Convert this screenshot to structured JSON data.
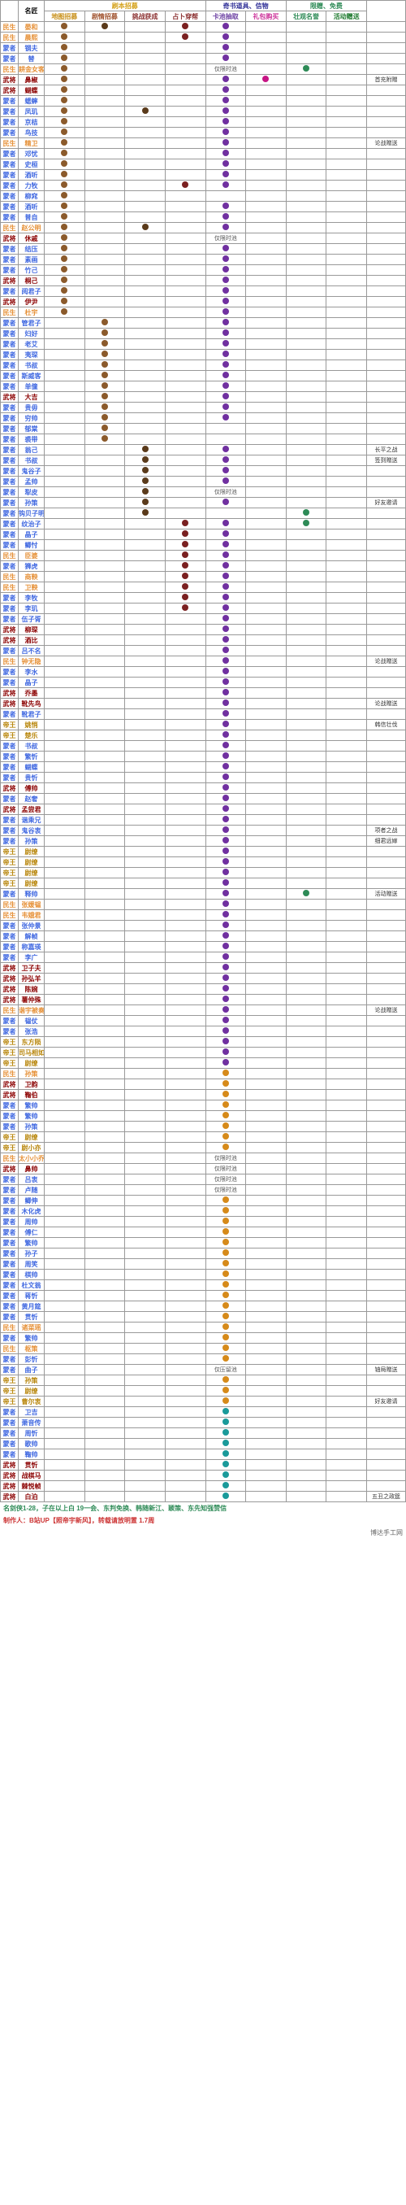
{
  "headers": {
    "name": "名匠",
    "group1": "刷本招募",
    "group2": "奇书道具、信物",
    "group3": "限赠、免费",
    "cols": [
      "地图招募",
      "剧情招募",
      "挑战获成",
      "占卜穿帮",
      "卡池抽取",
      "礼包购买",
      "壮观名誉",
      "活动赠送"
    ]
  },
  "colors": {
    "header1": "#d4a017",
    "header2": "#8b4513",
    "header3": "#333399",
    "header_cols": [
      "#c8901a",
      "#a0522d",
      "#8b3030",
      "#8b3030",
      "#6a3ea1",
      "#cc3399",
      "#2e8b57",
      "#1e7a2e"
    ],
    "cat": {
      "民生": "#e69138",
      "武将": "#8b0000",
      "蒙者": "#4169e1",
      "蒙师": "#1e7a2e",
      "帝王": "#b8860b"
    },
    "name_default": "#cc7a00",
    "dot": {
      "brown": "#8b5a2b",
      "darkbrown": "#5a3a1a",
      "maroon": "#7a2020",
      "purple": "#7030a0",
      "magenta": "#c71585",
      "green": "#2e8b57",
      "teal": "#1a9a9a",
      "orange": "#d68a1a"
    }
  },
  "rows": [
    {
      "cat": "民生",
      "catc": "民生",
      "name": "晏和",
      "dots": {
        "0": "brown",
        "1": "darkbrown",
        "3": "maroon",
        "4": "purple"
      }
    },
    {
      "cat": "民生",
      "catc": "民生",
      "name": "晨熙",
      "dots": {
        "0": "brown",
        "3": "maroon",
        "4": "purple"
      }
    },
    {
      "cat": "蒙者",
      "catc": "蒙者",
      "name": "钢夫",
      "dots": {
        "0": "brown",
        "4": "purple"
      }
    },
    {
      "cat": "蒙者",
      "catc": "蒙者",
      "name": "替",
      "dots": {
        "0": "brown",
        "4": "purple"
      }
    },
    {
      "cat": "民生",
      "catc": "民生",
      "name": "耕金女客",
      "dots": {
        "0": "brown",
        "4t": "仅限时池",
        "6": "green"
      }
    },
    {
      "cat": "武将",
      "catc": "武将",
      "name": "鼻椒",
      "dots": {
        "0": "brown",
        "4": "purple",
        "5": "magenta"
      },
      "note": "首充附赠"
    },
    {
      "cat": "武将",
      "catc": "武将",
      "name": "蝴蝶",
      "dots": {
        "0": "brown",
        "4": "purple"
      }
    },
    {
      "cat": "蒙者",
      "catc": "蒙者",
      "name": "蟋蟀",
      "dots": {
        "0": "brown",
        "4": "purple"
      }
    },
    {
      "cat": "蒙者",
      "catc": "蒙者",
      "name": "凤玑",
      "dots": {
        "0": "brown",
        "2": "darkbrown",
        "4": "purple"
      }
    },
    {
      "cat": "蒙者",
      "catc": "蒙者",
      "name": "京桔",
      "dots": {
        "0": "brown",
        "4": "purple"
      }
    },
    {
      "cat": "蒙者",
      "catc": "蒙者",
      "name": "鸟技",
      "dots": {
        "0": "brown",
        "4": "purple"
      }
    },
    {
      "cat": "民生",
      "catc": "民生",
      "name": "精卫",
      "dots": {
        "0": "brown",
        "4": "purple"
      },
      "note": "论战赠送"
    },
    {
      "cat": "蒙者",
      "catc": "蒙者",
      "name": "邓忧",
      "dots": {
        "0": "brown",
        "4": "purple"
      }
    },
    {
      "cat": "蒙者",
      "catc": "蒙者",
      "name": "史桓",
      "dots": {
        "0": "brown",
        "4": "purple"
      }
    },
    {
      "cat": "蒙者",
      "catc": "蒙者",
      "name": "酒听",
      "dots": {
        "0": "brown",
        "4": "purple"
      }
    },
    {
      "cat": "蒙者",
      "catc": "蒙者",
      "name": "力牧",
      "dots": {
        "0": "brown",
        "3": "maroon",
        "4": "purple"
      }
    },
    {
      "cat": "蒙者",
      "catc": "蒙者",
      "name": "柳窕",
      "dots": {
        "0": "brown"
      }
    },
    {
      "cat": "蒙者",
      "catc": "蒙者",
      "name": "酒听",
      "dots": {
        "0": "brown",
        "4": "purple"
      }
    },
    {
      "cat": "蒙者",
      "catc": "蒙者",
      "name": "普自",
      "dots": {
        "0": "brown",
        "4": "purple"
      }
    },
    {
      "cat": "民生",
      "catc": "民生",
      "name": "赵公明",
      "dots": {
        "0": "brown",
        "2": "darkbrown",
        "4": "purple"
      }
    },
    {
      "cat": "武将",
      "catc": "武将",
      "name": "休戚",
      "dots": {
        "0": "brown",
        "4t": "仅限时池"
      }
    },
    {
      "cat": "蒙者",
      "catc": "蒙者",
      "name": "结压",
      "dots": {
        "0": "brown",
        "4": "purple"
      }
    },
    {
      "cat": "蒙者",
      "catc": "蒙者",
      "name": "素画",
      "dots": {
        "0": "brown",
        "4": "purple"
      }
    },
    {
      "cat": "蒙者",
      "catc": "蒙者",
      "name": "竹己",
      "dots": {
        "0": "brown",
        "4": "purple"
      }
    },
    {
      "cat": "武将",
      "catc": "武将",
      "name": "桐己",
      "dots": {
        "0": "brown",
        "4": "purple"
      }
    },
    {
      "cat": "蒙者",
      "catc": "蒙者",
      "name": "阅君子",
      "dots": {
        "0": "brown",
        "4": "purple"
      }
    },
    {
      "cat": "武将",
      "catc": "武将",
      "name": "伊尹",
      "dots": {
        "0": "brown",
        "4": "purple"
      }
    },
    {
      "cat": "民生",
      "catc": "民生",
      "name": "杜宇",
      "dots": {
        "0": "brown",
        "4": "purple"
      }
    },
    {
      "cat": "蒙者",
      "catc": "蒙者",
      "name": "管君子",
      "dots": {
        "1": "brown",
        "4": "purple"
      }
    },
    {
      "cat": "蒙者",
      "catc": "蒙者",
      "name": "妇好",
      "dots": {
        "1": "brown",
        "4": "purple"
      }
    },
    {
      "cat": "蒙者",
      "catc": "蒙者",
      "name": "老艾",
      "dots": {
        "1": "brown",
        "4": "purple"
      }
    },
    {
      "cat": "蒙者",
      "catc": "蒙者",
      "name": "夷琛",
      "dots": {
        "1": "brown",
        "4": "purple"
      }
    },
    {
      "cat": "蒙者",
      "catc": "蒙者",
      "name": "书叔",
      "dots": {
        "1": "brown",
        "4": "purple"
      }
    },
    {
      "cat": "蒙者",
      "catc": "蒙者",
      "name": "斯威客",
      "dots": {
        "1": "brown",
        "4": "purple"
      }
    },
    {
      "cat": "蒙者",
      "catc": "蒙者",
      "name": "单僮",
      "dots": {
        "1": "brown",
        "4": "purple"
      }
    },
    {
      "cat": "武将",
      "catc": "武将",
      "name": "大吉",
      "dots": {
        "1": "brown",
        "4": "purple"
      }
    },
    {
      "cat": "蒙者",
      "catc": "蒙者",
      "name": "贵毋",
      "dots": {
        "1": "brown",
        "4": "purple"
      }
    },
    {
      "cat": "蒙者",
      "catc": "蒙者",
      "name": "穷帅",
      "dots": {
        "1": "brown",
        "4": "purple"
      }
    },
    {
      "cat": "蒙者",
      "catc": "蒙者",
      "name": "郁棠",
      "dots": {
        "1": "brown"
      }
    },
    {
      "cat": "蒙者",
      "catc": "蒙者",
      "name": "裘带",
      "dots": {
        "1": "brown"
      }
    },
    {
      "cat": "蒙者",
      "catc": "蒙者",
      "name": "翁己",
      "dots": {
        "2": "darkbrown",
        "4": "purple"
      },
      "note": "长平之战"
    },
    {
      "cat": "蒙者",
      "catc": "蒙者",
      "name": "书叔",
      "dots": {
        "2": "darkbrown",
        "4": "purple"
      },
      "note": "签到赠送"
    },
    {
      "cat": "蒙者",
      "catc": "蒙者",
      "name": "鬼谷子",
      "dots": {
        "2": "darkbrown",
        "4": "purple"
      }
    },
    {
      "cat": "蒙者",
      "catc": "蒙者",
      "name": "孟帅",
      "dots": {
        "2": "darkbrown",
        "4": "purple"
      }
    },
    {
      "cat": "蒙者",
      "catc": "蒙者",
      "name": "犁皮",
      "dots": {
        "2": "darkbrown",
        "4t": "仅限时池"
      }
    },
    {
      "cat": "蒙者",
      "catc": "蒙者",
      "name": "孙策",
      "dots": {
        "2": "darkbrown",
        "4": "purple"
      },
      "note": "好友邀请"
    },
    {
      "cat": "蒙者",
      "catc": "蒙者",
      "name": "钩贝子明",
      "dots": {
        "2": "darkbrown",
        "6": "green"
      }
    },
    {
      "cat": "蒙者",
      "catc": "蒙者",
      "name": "纹治子",
      "dots": {
        "3": "maroon",
        "4": "purple",
        "6": "green"
      }
    },
    {
      "cat": "蒙者",
      "catc": "蒙者",
      "name": "晶子",
      "dots": {
        "3": "maroon",
        "4": "purple"
      }
    },
    {
      "cat": "蒙者",
      "catc": "蒙者",
      "name": "鲫忖",
      "dots": {
        "3": "maroon",
        "4": "purple"
      }
    },
    {
      "cat": "民生",
      "catc": "民生",
      "name": "臣婆",
      "dots": {
        "3": "maroon",
        "4": "purple"
      }
    },
    {
      "cat": "蒙者",
      "catc": "蒙者",
      "name": "狮虎",
      "dots": {
        "3": "maroon",
        "4": "purple"
      }
    },
    {
      "cat": "民生",
      "catc": "民生",
      "name": "商鞅",
      "dots": {
        "3": "maroon",
        "4": "purple"
      }
    },
    {
      "cat": "民生",
      "catc": "民生",
      "name": "卫鞅",
      "dots": {
        "3": "maroon",
        "4": "purple"
      }
    },
    {
      "cat": "蒙者",
      "catc": "蒙者",
      "name": "李牧",
      "dots": {
        "3": "maroon",
        "4": "purple"
      }
    },
    {
      "cat": "蒙者",
      "catc": "蒙者",
      "name": "李玑",
      "dots": {
        "3": "maroon",
        "4": "purple"
      }
    },
    {
      "cat": "蒙者",
      "catc": "蒙者",
      "name": "伍子胥",
      "dots": {
        "4": "purple"
      }
    },
    {
      "cat": "武将",
      "catc": "武将",
      "name": "柳琛",
      "dots": {
        "4": "purple"
      }
    },
    {
      "cat": "武将",
      "catc": "武将",
      "name": "酒比",
      "dots": {
        "4": "purple"
      }
    },
    {
      "cat": "蒙者",
      "catc": "蒙者",
      "name": "吕不名",
      "dots": {
        "4": "purple"
      }
    },
    {
      "cat": "民生",
      "catc": "民生",
      "name": "钟无隐",
      "dots": {
        "4": "purple"
      },
      "note": "论战赠送"
    },
    {
      "cat": "蒙者",
      "catc": "蒙者",
      "name": "李水",
      "dots": {
        "4": "purple"
      }
    },
    {
      "cat": "蒙者",
      "catc": "蒙者",
      "name": "晶子",
      "dots": {
        "4": "purple"
      }
    },
    {
      "cat": "武将",
      "catc": "武将",
      "name": "乔墨",
      "dots": {
        "4": "purple"
      }
    },
    {
      "cat": "武将",
      "catc": "武将",
      "name": "靴先鸟",
      "dots": {
        "4": "purple"
      },
      "note": "论战赠送"
    },
    {
      "cat": "蒙者",
      "catc": "蒙者",
      "name": "靴君子",
      "dots": {
        "4": "purple"
      }
    },
    {
      "cat": "帝王",
      "catc": "帝王",
      "name": "姚悄",
      "dots": {
        "4": "purple"
      },
      "note": "韩信壮伐"
    },
    {
      "cat": "帝王",
      "catc": "帝王",
      "name": "楚乐",
      "dots": {
        "4": "purple"
      }
    },
    {
      "cat": "蒙者",
      "catc": "蒙者",
      "name": "书叔",
      "dots": {
        "4": "purple"
      }
    },
    {
      "cat": "蒙者",
      "catc": "蒙者",
      "name": "繁忻",
      "dots": {
        "4": "purple"
      }
    },
    {
      "cat": "蒙者",
      "catc": "蒙者",
      "name": "蝴蝶",
      "dots": {
        "4": "purple"
      }
    },
    {
      "cat": "蒙者",
      "catc": "蒙者",
      "name": "贵忻",
      "dots": {
        "4": "purple"
      }
    },
    {
      "cat": "武将",
      "catc": "武将",
      "name": "傅帅",
      "dots": {
        "4": "purple"
      }
    },
    {
      "cat": "蒙者",
      "catc": "蒙者",
      "name": "赵奢",
      "dots": {
        "4": "purple"
      }
    },
    {
      "cat": "武将",
      "catc": "武将",
      "name": "孟尝君",
      "dots": {
        "4": "purple"
      }
    },
    {
      "cat": "蒙者",
      "catc": "蒙者",
      "name": "谐乘兄",
      "dots": {
        "4": "purple"
      }
    },
    {
      "cat": "蒙者",
      "catc": "蒙者",
      "name": "鬼谷衷",
      "dots": {
        "4": "purple"
      },
      "note": "项者之战"
    },
    {
      "cat": "蒙者",
      "catc": "蒙者",
      "name": "孙策",
      "dots": {
        "4": "purple"
      },
      "note": "细君远嫁"
    },
    {
      "cat": "帝王",
      "catc": "帝王",
      "name": "尉缭",
      "dots": {
        "4": "purple"
      }
    },
    {
      "cat": "帝王",
      "catc": "帝王",
      "name": "尉缭",
      "dots": {
        "4": "purple"
      }
    },
    {
      "cat": "帝王",
      "catc": "帝王",
      "name": "尉缭",
      "dots": {
        "4": "purple"
      }
    },
    {
      "cat": "帝王",
      "catc": "帝王",
      "name": "尉缭",
      "dots": {
        "4": "purple"
      }
    },
    {
      "cat": "蒙者",
      "catc": "蒙者",
      "name": "释帅",
      "dots": {
        "4": "purple",
        "6": "green"
      },
      "note": "活动赠送"
    },
    {
      "cat": "民生",
      "catc": "民生",
      "name": "张媛韫",
      "dots": {
        "4": "purple"
      }
    },
    {
      "cat": "民生",
      "catc": "民生",
      "name": "韦娥君",
      "dots": {
        "4": "purple"
      }
    },
    {
      "cat": "蒙者",
      "catc": "蒙者",
      "name": "张仲景",
      "dots": {
        "4": "purple"
      }
    },
    {
      "cat": "蒙者",
      "catc": "蒙者",
      "name": "解帧",
      "dots": {
        "4": "purple"
      }
    },
    {
      "cat": "蒙者",
      "catc": "蒙者",
      "name": "称嘉瑛",
      "dots": {
        "4": "purple"
      }
    },
    {
      "cat": "蒙者",
      "catc": "蒙者",
      "name": "李广",
      "dots": {
        "4": "purple"
      }
    },
    {
      "cat": "武将",
      "catc": "武将",
      "name": "卫子夫",
      "dots": {
        "4": "purple"
      }
    },
    {
      "cat": "武将",
      "catc": "武将",
      "name": "孙弘羊",
      "dots": {
        "4": "purple"
      }
    },
    {
      "cat": "武将",
      "catc": "武将",
      "name": "陈婉",
      "dots": {
        "4": "purple"
      }
    },
    {
      "cat": "武将",
      "catc": "武将",
      "name": "薯仲殊",
      "dots": {
        "4": "purple"
      }
    },
    {
      "cat": "民生",
      "catc": "民生",
      "name": "谐宇被奏",
      "dots": {
        "4": "purple"
      },
      "note": "论战赠送"
    },
    {
      "cat": "蒙者",
      "catc": "蒙者",
      "name": "韫仗",
      "dots": {
        "4": "purple"
      }
    },
    {
      "cat": "蒙者",
      "catc": "蒙者",
      "name": "张浩",
      "dots": {
        "4": "purple"
      }
    },
    {
      "cat": "帝王",
      "catc": "帝王",
      "name": "东方陨",
      "dots": {
        "4": "purple"
      }
    },
    {
      "cat": "帝王",
      "catc": "帝王",
      "name": "司马相如",
      "dots": {
        "4": "purple"
      }
    },
    {
      "cat": "帝王",
      "catc": "帝王",
      "name": "尉缭",
      "dots": {
        "4": "purple"
      }
    },
    {
      "cat": "民生",
      "catc": "民生",
      "name": "孙策",
      "dots": {
        "4": "orange"
      }
    },
    {
      "cat": "武将",
      "catc": "武将",
      "name": "卫韵",
      "dots": {
        "4": "orange"
      }
    },
    {
      "cat": "武将",
      "catc": "武将",
      "name": "鞠伯",
      "dots": {
        "4": "orange"
      }
    },
    {
      "cat": "蒙者",
      "catc": "蒙者",
      "name": "繁帅",
      "dots": {
        "4": "orange"
      }
    },
    {
      "cat": "蒙者",
      "catc": "蒙者",
      "name": "繁帅",
      "dots": {
        "4": "orange"
      }
    },
    {
      "cat": "蒙者",
      "catc": "蒙者",
      "name": "孙策",
      "dots": {
        "4": "orange"
      }
    },
    {
      "cat": "帝王",
      "catc": "帝王",
      "name": "尉缭",
      "dots": {
        "4": "orange"
      }
    },
    {
      "cat": "帝王",
      "catc": "帝王",
      "name": "尉小亦",
      "dots": {
        "4": "orange"
      }
    },
    {
      "cat": "民生",
      "catc": "民生",
      "name": "太小小乔",
      "dots": {
        "4t": "仅限时池"
      }
    },
    {
      "cat": "武将",
      "catc": "武将",
      "name": "鼻帅",
      "dots": {
        "4t": "仅限时池"
      }
    },
    {
      "cat": "蒙者",
      "catc": "蒙者",
      "name": "吕衷",
      "dots": {
        "4t": "仅限时池"
      }
    },
    {
      "cat": "蒙者",
      "catc": "蒙者",
      "name": "卢随",
      "dots": {
        "4t": "仅限时池"
      }
    },
    {
      "cat": "蒙者",
      "catc": "蒙者",
      "name": "鲫伸",
      "dots": {
        "4": "orange"
      }
    },
    {
      "cat": "蒙者",
      "catc": "蒙者",
      "name": "木化虎",
      "dots": {
        "4": "orange"
      }
    },
    {
      "cat": "蒙者",
      "catc": "蒙者",
      "name": "周帅",
      "dots": {
        "4": "orange"
      }
    },
    {
      "cat": "蒙者",
      "catc": "蒙者",
      "name": "傅仁",
      "dots": {
        "4": "orange"
      }
    },
    {
      "cat": "蒙者",
      "catc": "蒙者",
      "name": "繁帅",
      "dots": {
        "4": "orange"
      }
    },
    {
      "cat": "蒙者",
      "catc": "蒙者",
      "name": "孙子",
      "dots": {
        "4": "orange"
      }
    },
    {
      "cat": "蒙者",
      "catc": "蒙者",
      "name": "周笑",
      "dots": {
        "4": "orange"
      }
    },
    {
      "cat": "蒙者",
      "catc": "蒙者",
      "name": "棋帅",
      "dots": {
        "4": "orange"
      }
    },
    {
      "cat": "蒙者",
      "catc": "蒙者",
      "name": "杜文翁",
      "dots": {
        "4": "orange"
      }
    },
    {
      "cat": "蒙者",
      "catc": "蒙者",
      "name": "蒋忻",
      "dots": {
        "4": "orange"
      }
    },
    {
      "cat": "蒙者",
      "catc": "蒙者",
      "name": "黄月筵",
      "dots": {
        "4": "orange"
      }
    },
    {
      "cat": "蒙者",
      "catc": "蒙者",
      "name": "贯忻",
      "dots": {
        "4": "orange"
      }
    },
    {
      "cat": "民生",
      "catc": "民生",
      "name": "诸菜瑶",
      "dots": {
        "4": "orange"
      }
    },
    {
      "cat": "蒙者",
      "catc": "蒙者",
      "name": "繁帅",
      "dots": {
        "4": "orange"
      }
    },
    {
      "cat": "民生",
      "catc": "民生",
      "name": "枢策",
      "dots": {
        "4": "orange"
      }
    },
    {
      "cat": "蒙者",
      "catc": "蒙者",
      "name": "彭忻",
      "dots": {
        "4": "orange"
      }
    },
    {
      "cat": "蒙者",
      "catc": "蒙者",
      "name": "曲子",
      "dots": {
        "4t": "仅压留池"
      },
      "note": "铀局赠送"
    },
    {
      "cat": "帝王",
      "catc": "帝王",
      "name": "孙策",
      "dots": {
        "4": "orange"
      }
    },
    {
      "cat": "帝王",
      "catc": "帝王",
      "name": "尉缭",
      "dots": {
        "4": "orange"
      }
    },
    {
      "cat": "帝王",
      "catc": "帝王",
      "name": "曹尔衷",
      "dots": {
        "4": "orange"
      },
      "note": "好友邀请"
    },
    {
      "cat": "蒙者",
      "catc": "蒙者",
      "name": "卫吉",
      "dots": {
        "4": "teal"
      }
    },
    {
      "cat": "蒙者",
      "catc": "蒙者",
      "name": "萧音传",
      "dots": {
        "4": "teal"
      }
    },
    {
      "cat": "蒙者",
      "catc": "蒙者",
      "name": "周忻",
      "dots": {
        "4": "teal"
      }
    },
    {
      "cat": "蒙者",
      "catc": "蒙者",
      "name": "歌帅",
      "dots": {
        "4": "teal"
      }
    },
    {
      "cat": "蒙者",
      "catc": "蒙者",
      "name": "鞠帅",
      "dots": {
        "4": "teal"
      }
    },
    {
      "cat": "武将",
      "catc": "武将",
      "name": "贯忻",
      "dots": {
        "4": "teal"
      }
    },
    {
      "cat": "武将",
      "catc": "武将",
      "name": "战棋马",
      "dots": {
        "4": "teal"
      }
    },
    {
      "cat": "武将",
      "catc": "武将",
      "name": "棘悦帧",
      "dots": {
        "4": "teal"
      }
    },
    {
      "cat": "武将",
      "catc": "武将",
      "name": "白泊",
      "dots": {
        "4": "teal"
      },
      "note": "五丑之政筵"
    }
  ],
  "footer": {
    "line1": "名剑侠1-28，子在以上白  19一会、东判免换、韩随新江、颖策、东先知强赞信",
    "line2": "制作人：B站UP【照帝宇新风】，转载请放明置 1.7周",
    "watermark": "博达手工网"
  }
}
